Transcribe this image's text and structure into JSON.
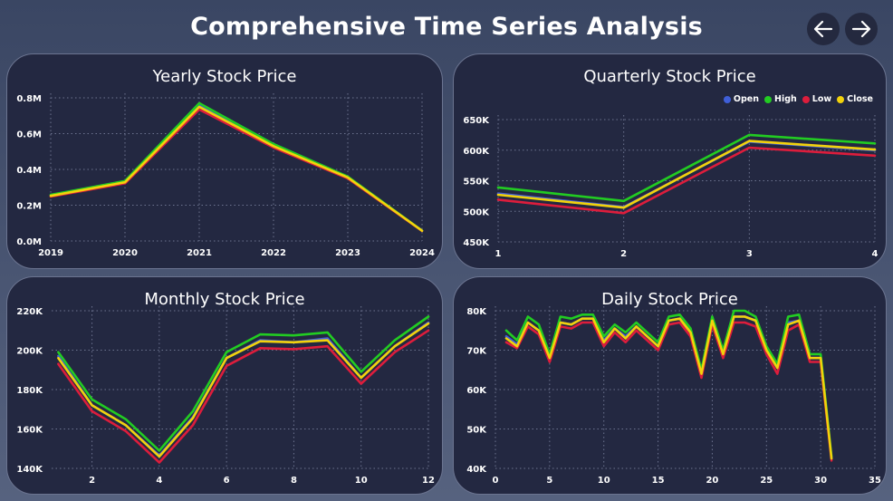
{
  "header": {
    "title": "Comprehensive Time Series Analysis"
  },
  "nav": {
    "back_icon": "arrow-left-icon",
    "forward_icon": "arrow-right-icon"
  },
  "colors": {
    "Open": "#3f5fd8",
    "High": "#22cc22",
    "Low": "#dd1d3c",
    "Close": "#f2d20c"
  },
  "chart_data": [
    {
      "id": "yearly",
      "type": "line",
      "title": "Yearly Stock Price",
      "x": [
        2019,
        2020,
        2021,
        2022,
        2023,
        2024
      ],
      "xticks": [
        "2019",
        "2020",
        "2021",
        "2022",
        "2023",
        "2024"
      ],
      "yticks": [
        "0.0M",
        "0.2M",
        "0.4M",
        "0.6M",
        "0.8M"
      ],
      "ylim": [
        0,
        800000
      ],
      "series": [
        {
          "name": "Open",
          "values": [
            253000,
            330000,
            760000,
            538000,
            355000,
            57000
          ]
        },
        {
          "name": "High",
          "values": [
            258000,
            335000,
            770000,
            542000,
            360000,
            58000
          ]
        },
        {
          "name": "Low",
          "values": [
            248000,
            322000,
            735000,
            522000,
            350000,
            56000
          ]
        },
        {
          "name": "Close",
          "values": [
            252000,
            328000,
            750000,
            530000,
            355000,
            57000
          ]
        }
      ]
    },
    {
      "id": "quarterly",
      "type": "line",
      "title": "Quarterly Stock Price",
      "x": [
        1,
        2,
        3,
        4
      ],
      "xticks": [
        "1",
        "2",
        "3",
        "4"
      ],
      "yticks": [
        "450K",
        "500K",
        "550K",
        "600K",
        "650K"
      ],
      "ylim": [
        450000,
        650000
      ],
      "legend": [
        "Open",
        "High",
        "Low",
        "Close"
      ],
      "legend_position": "top-right",
      "series": [
        {
          "name": "Open",
          "values": [
            529000,
            507000,
            614000,
            600000
          ]
        },
        {
          "name": "High",
          "values": [
            539000,
            517000,
            625000,
            611000
          ]
        },
        {
          "name": "Low",
          "values": [
            519000,
            497000,
            604000,
            591000
          ]
        },
        {
          "name": "Close",
          "values": [
            527000,
            506000,
            615000,
            601000
          ]
        }
      ]
    },
    {
      "id": "monthly",
      "type": "line",
      "title": "Monthly Stock Price",
      "x": [
        1,
        2,
        3,
        4,
        5,
        6,
        7,
        8,
        9,
        10,
        11,
        12
      ],
      "xticks": [
        "2",
        "4",
        "6",
        "8",
        "10",
        "12"
      ],
      "xlim": [
        0.8,
        12
      ],
      "yticks": [
        "140K",
        "160K",
        "180K",
        "200K",
        "220K"
      ],
      "ylim": [
        140000,
        220000
      ],
      "series": [
        {
          "name": "Open",
          "values": [
            197000,
            172000,
            162000,
            146500,
            166000,
            196000,
            205000,
            204000,
            206000,
            186000,
            202000,
            214000
          ]
        },
        {
          "name": "High",
          "values": [
            199000,
            175000,
            165000,
            149000,
            169000,
            199000,
            208000,
            207500,
            209000,
            189000,
            205000,
            217000
          ]
        },
        {
          "name": "Low",
          "values": [
            193000,
            169000,
            159000,
            143000,
            162000,
            192000,
            201000,
            200500,
            202000,
            183000,
            199000,
            210000
          ]
        },
        {
          "name": "Close",
          "values": [
            196000,
            172000,
            162000,
            146000,
            165500,
            196000,
            204500,
            204000,
            205000,
            186000,
            202000,
            213500
          ]
        }
      ]
    },
    {
      "id": "daily",
      "type": "line",
      "title": "Daily Stock Price",
      "x": [
        1,
        2,
        3,
        4,
        5,
        6,
        7,
        8,
        9,
        10,
        11,
        12,
        13,
        14,
        15,
        16,
        17,
        18,
        19,
        20,
        21,
        22,
        23,
        24,
        25,
        26,
        27,
        28,
        29,
        30,
        31
      ],
      "xticks": [
        "0",
        "5",
        "10",
        "15",
        "20",
        "25",
        "30",
        "35"
      ],
      "xlim": [
        0,
        35
      ],
      "yticks": [
        "40K",
        "50K",
        "60K",
        "70K",
        "80K"
      ],
      "ylim": [
        40000,
        80000
      ],
      "series": [
        {
          "name": "Open",
          "values": [
            73500,
            71500,
            77000,
            75000,
            68000,
            77000,
            76500,
            78000,
            78000,
            72500,
            75500,
            73500,
            76000,
            73500,
            71000,
            77500,
            78000,
            74500,
            64000,
            77500,
            69000,
            78500,
            78500,
            77500,
            70000,
            65500,
            77000,
            77500,
            68000,
            68000,
            42500
          ]
        },
        {
          "name": "High",
          "values": [
            75000,
            72500,
            78500,
            76500,
            69000,
            78500,
            78000,
            79000,
            79000,
            73500,
            76500,
            74500,
            77000,
            74500,
            72000,
            78500,
            79000,
            75500,
            65000,
            78500,
            70000,
            80000,
            80000,
            78500,
            71000,
            66500,
            78500,
            79000,
            69000,
            69000,
            43000
          ]
        },
        {
          "name": "Low",
          "values": [
            72000,
            70500,
            76000,
            74000,
            67000,
            76000,
            75500,
            77000,
            77000,
            71000,
            74500,
            72000,
            75000,
            72500,
            70000,
            76500,
            77000,
            73500,
            63000,
            76500,
            68000,
            77000,
            77000,
            76000,
            69000,
            64000,
            75000,
            76500,
            67000,
            67000,
            42000
          ]
        },
        {
          "name": "Close",
          "values": [
            73000,
            71000,
            77000,
            75000,
            68000,
            77000,
            76500,
            78000,
            78000,
            72000,
            75500,
            73000,
            76000,
            73500,
            71000,
            77500,
            78000,
            74500,
            64000,
            77500,
            69000,
            78500,
            78500,
            77500,
            70000,
            65500,
            76500,
            77500,
            68000,
            68000,
            42500
          ]
        }
      ]
    }
  ]
}
